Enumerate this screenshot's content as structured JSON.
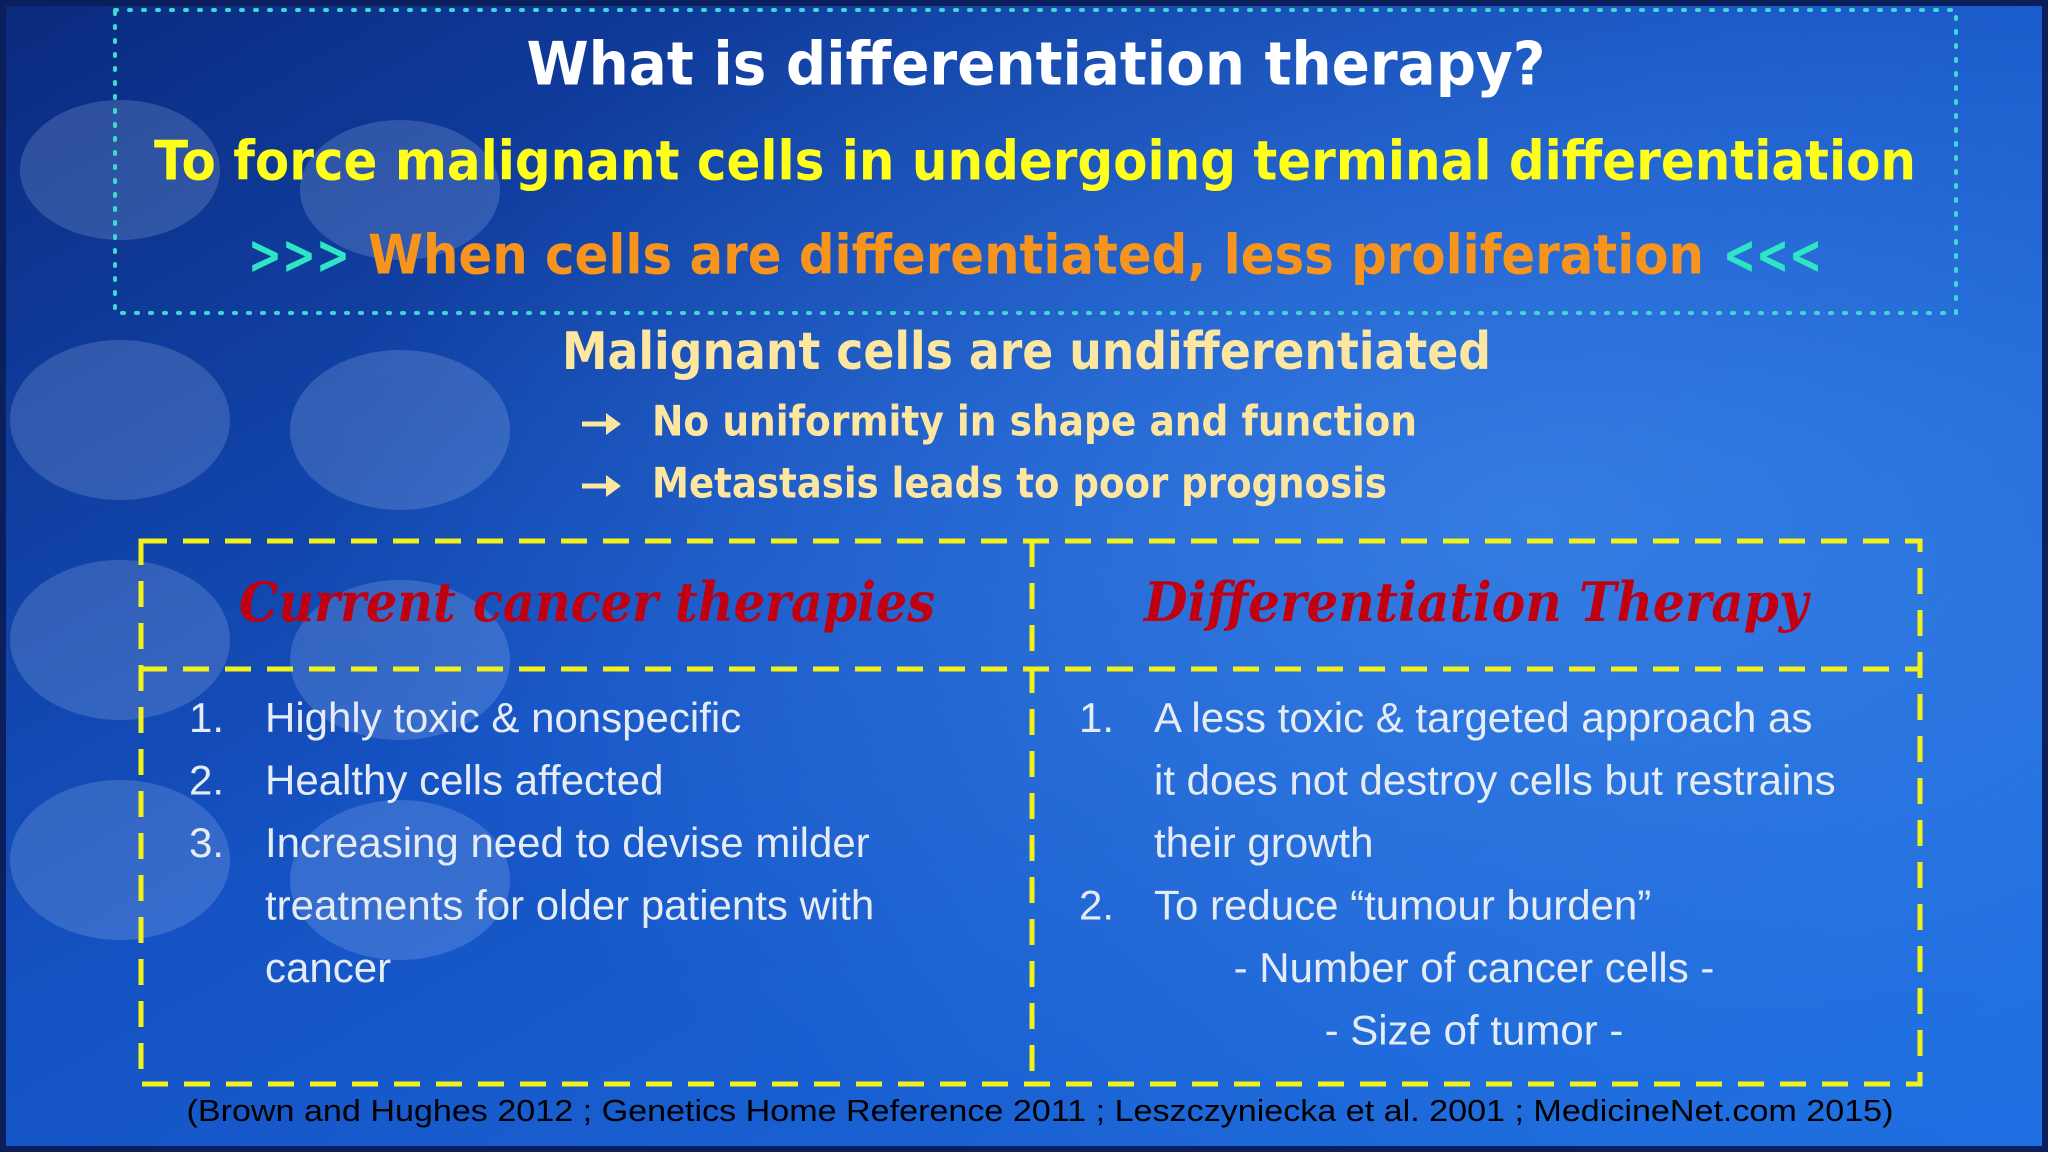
{
  "title": "What is differentiation therapy?",
  "subtitle": "To force malignant cells in undergoing terminal differentiation",
  "highlight": {
    "prefix": ">>>",
    "text": "When cells are differentiated, less proliferation",
    "suffix": "<<<"
  },
  "malignant": {
    "heading": "Malignant cells are undifferentiated",
    "points": [
      "No uniformity in shape and function",
      "Metastasis leads to poor prognosis"
    ]
  },
  "comparison": {
    "columns": [
      {
        "header": "Current cancer therapies",
        "items": [
          {
            "number": "1.",
            "lines": [
              "Highly toxic & nonspecific"
            ]
          },
          {
            "number": "2.",
            "lines": [
              "Healthy cells affected"
            ]
          },
          {
            "number": "3.",
            "lines": [
              "Increasing need to devise milder",
              "treatments for older patients with",
              "cancer"
            ]
          }
        ]
      },
      {
        "header": "Differentiation Therapy",
        "items": [
          {
            "number": "1.",
            "lines": [
              "A less toxic & targeted approach as",
              "it does not destroy cells but restrains",
              "their growth"
            ]
          },
          {
            "number": "2.",
            "lines": [
              "To reduce “tumour burden”"
            ],
            "subpoints": [
              "- Number of cancer cells -",
              "- Size of tumor -"
            ]
          }
        ]
      }
    ]
  },
  "citation": "(Brown and Hughes 2012 ; Genetics Home Reference 2011 ; Leszczyniecka et al. 2001 ; MedicineNet.com 2015)"
}
